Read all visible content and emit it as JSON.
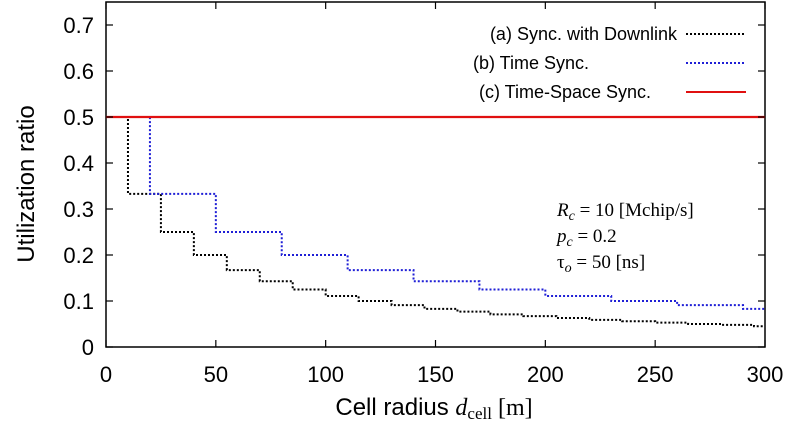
{
  "chart_data": {
    "type": "line",
    "xlabel_main": "Cell radius ",
    "xlabel_var": "d",
    "xlabel_sub": "cell",
    "xlabel_unit": " [m]",
    "ylabel": "Utilization ratio",
    "xlim": [
      0,
      300
    ],
    "ylim": [
      0,
      0.75
    ],
    "x_ticks": [
      "0",
      "50",
      "100",
      "150",
      "200",
      "250",
      "300"
    ],
    "y_ticks": [
      "0",
      "0.1",
      "0.2",
      "0.3",
      "0.4",
      "0.5",
      "0.6",
      "0.7"
    ],
    "grid": false,
    "legend_position": "top-right",
    "series": [
      {
        "name": "(a) Sync. with Downlink",
        "color": "#000000",
        "style": "dotted",
        "step_x": [
          0,
          10,
          25,
          40,
          55,
          70,
          85,
          100,
          115,
          130,
          145,
          160,
          175,
          190,
          205,
          220,
          235,
          250,
          265,
          280,
          295,
          300
        ],
        "step_y": [
          0.5,
          0.333,
          0.25,
          0.2,
          0.167,
          0.143,
          0.125,
          0.111,
          0.1,
          0.091,
          0.083,
          0.077,
          0.071,
          0.067,
          0.063,
          0.059,
          0.056,
          0.053,
          0.05,
          0.048,
          0.045
        ]
      },
      {
        "name": "(b) Time Sync.",
        "color": "#1f1fd6",
        "style": "dotted",
        "step_x": [
          0,
          20,
          50,
          80,
          110,
          140,
          170,
          200,
          230,
          260,
          290,
          300
        ],
        "step_y": [
          0.5,
          0.333,
          0.25,
          0.2,
          0.167,
          0.143,
          0.125,
          0.111,
          0.1,
          0.091,
          0.083
        ]
      },
      {
        "name": "(c) Time-Space Sync.",
        "color": "#e01010",
        "style": "solid",
        "step_x": [
          0,
          300
        ],
        "step_y": [
          0.5
        ]
      }
    ],
    "annotations": [
      {
        "var": "R",
        "sub": "c",
        "text": " = 10 [Mchip/s]"
      },
      {
        "var": "p",
        "sub": "c",
        "text": " = 0.2"
      },
      {
        "var": "τ",
        "sub": "o",
        "text": " = 50 [ns]"
      }
    ]
  }
}
